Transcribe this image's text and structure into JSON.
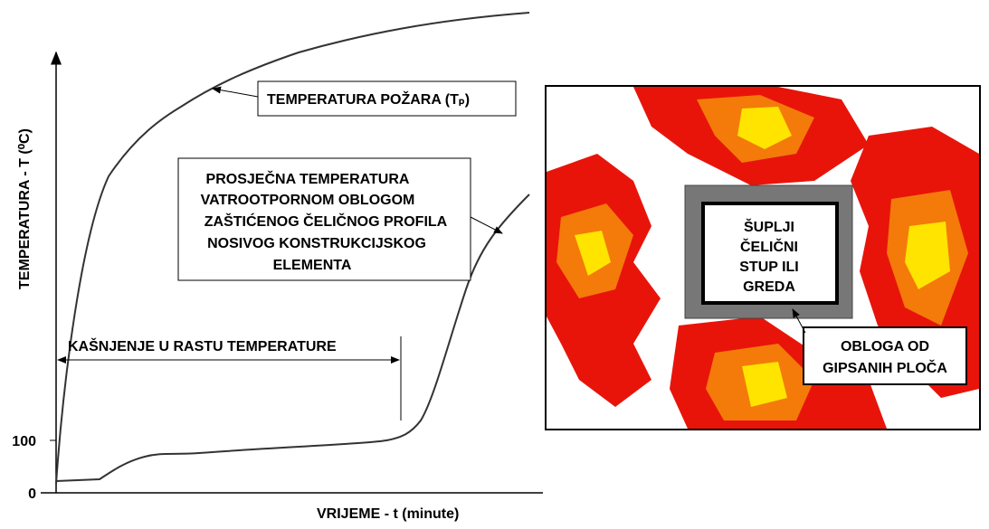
{
  "axis": {
    "y_label": "TEMPERATURA  - T  (⁰C)",
    "x_label": "VRIJEME  - t  (minute)",
    "yticks": [
      100,
      0
    ]
  },
  "fire_label": "TEMPERATURA POŽARA  (Tₚ)",
  "steel_label": [
    "PROSJEČNA TEMPERATURA",
    "VATROOTPORNOM OBLOGOM",
    "ZAŠTIĆENOG ČELIČNOG PROFILA",
    "NOSIVOG KONSTRUKCIJSKOG",
    "ELEMENTA"
  ],
  "delay_label": "KAŠNJENJE U RASTU TEMPERATURE",
  "section": {
    "member": [
      "ŠUPLJI",
      "ČELIČNI",
      "STUP ILI",
      "GREDA"
    ],
    "lining": [
      "OBLOGA OD",
      "GIPSANIH PLOČA"
    ]
  }
}
